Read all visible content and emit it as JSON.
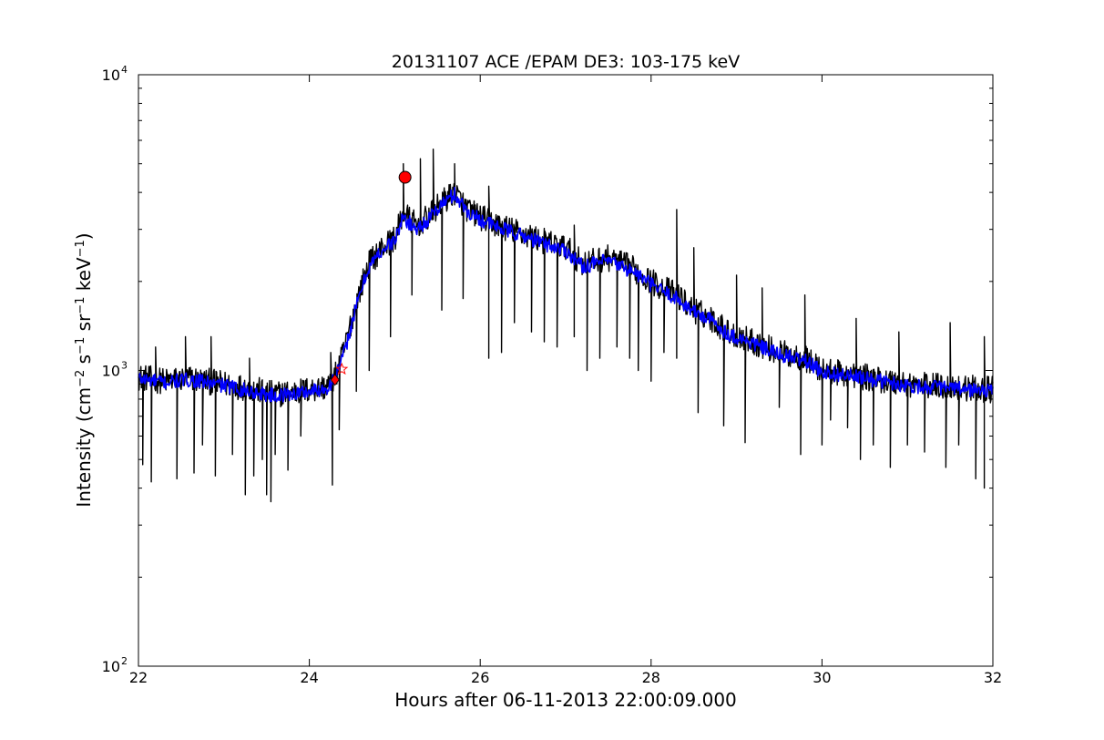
{
  "chart_data": {
    "type": "line",
    "title": "20131107 ACE /EPAM DE3: 103-175 keV",
    "xlabel": "Hours after 06-11-2013 22:00:09.000",
    "ylabel": {
      "text1": "Intensity (cm",
      "sup1": "−2",
      "text2": " s",
      "sup2": "−1",
      "text3": " sr",
      "sup3": "−1",
      "text4": " keV",
      "sup4": "−1",
      "text5": ")"
    },
    "xlim": [
      22,
      32
    ],
    "ylim": [
      100,
      10000
    ],
    "yscale": "log",
    "grid": false,
    "x_ticks": [
      "22",
      "24",
      "26",
      "28",
      "30",
      "32"
    ],
    "y_ticks": [
      {
        "value": 100,
        "base": "10",
        "exp": "2"
      },
      {
        "value": 1000,
        "base": "10",
        "exp": "3"
      },
      {
        "value": 10000,
        "base": "10",
        "exp": "4"
      }
    ],
    "series": [
      {
        "role": "raw",
        "color": "#000000",
        "keypoints": [
          [
            22.0,
            950
          ],
          [
            22.3,
            920
          ],
          [
            22.6,
            940
          ],
          [
            23.0,
            900
          ],
          [
            23.3,
            870
          ],
          [
            23.6,
            830
          ],
          [
            24.0,
            860
          ],
          [
            24.2,
            880
          ],
          [
            24.3,
            950
          ],
          [
            24.4,
            1150
          ],
          [
            24.5,
            1500
          ],
          [
            24.6,
            1900
          ],
          [
            24.7,
            2300
          ],
          [
            24.85,
            2600
          ],
          [
            25.0,
            2800
          ],
          [
            25.1,
            3400
          ],
          [
            25.25,
            3100
          ],
          [
            25.4,
            3300
          ],
          [
            25.55,
            3700
          ],
          [
            25.7,
            4000
          ],
          [
            25.85,
            3500
          ],
          [
            26.0,
            3300
          ],
          [
            26.2,
            3100
          ],
          [
            26.5,
            2900
          ],
          [
            26.8,
            2700
          ],
          [
            27.0,
            2600
          ],
          [
            27.2,
            2300
          ],
          [
            27.5,
            2400
          ],
          [
            27.8,
            2200
          ],
          [
            28.0,
            2000
          ],
          [
            28.3,
            1800
          ],
          [
            28.5,
            1600
          ],
          [
            28.7,
            1500
          ],
          [
            28.9,
            1350
          ],
          [
            29.2,
            1250
          ],
          [
            29.5,
            1150
          ],
          [
            29.8,
            1100
          ],
          [
            30.0,
            1000
          ],
          [
            30.5,
            950
          ],
          [
            31.0,
            900
          ],
          [
            31.5,
            880
          ],
          [
            32.0,
            860
          ]
        ],
        "dips": [
          [
            22.05,
            480
          ],
          [
            22.15,
            420
          ],
          [
            22.45,
            430
          ],
          [
            22.65,
            450
          ],
          [
            22.75,
            560
          ],
          [
            22.9,
            440
          ],
          [
            23.1,
            520
          ],
          [
            23.25,
            380
          ],
          [
            23.35,
            440
          ],
          [
            23.45,
            500
          ],
          [
            23.5,
            380
          ],
          [
            23.55,
            360
          ],
          [
            23.6,
            520
          ],
          [
            23.75,
            460
          ],
          [
            23.9,
            600
          ],
          [
            24.27,
            410
          ],
          [
            24.35,
            630
          ],
          [
            24.55,
            850
          ],
          [
            24.7,
            1000
          ],
          [
            24.95,
            1300
          ],
          [
            25.2,
            1800
          ],
          [
            25.55,
            1600
          ],
          [
            25.8,
            1750
          ],
          [
            26.1,
            1100
          ],
          [
            26.25,
            1150
          ],
          [
            26.4,
            1450
          ],
          [
            26.6,
            1350
          ],
          [
            26.75,
            1250
          ],
          [
            26.9,
            1200
          ],
          [
            27.1,
            1300
          ],
          [
            27.25,
            1000
          ],
          [
            27.4,
            1100
          ],
          [
            27.6,
            1200
          ],
          [
            27.75,
            1100
          ],
          [
            27.85,
            1000
          ],
          [
            28.0,
            920
          ],
          [
            28.15,
            1150
          ],
          [
            28.3,
            1100
          ],
          [
            28.55,
            720
          ],
          [
            28.85,
            650
          ],
          [
            29.1,
            570
          ],
          [
            29.5,
            750
          ],
          [
            29.75,
            520
          ],
          [
            30.0,
            560
          ],
          [
            30.1,
            680
          ],
          [
            30.3,
            640
          ],
          [
            30.45,
            500
          ],
          [
            30.6,
            560
          ],
          [
            30.8,
            470
          ],
          [
            31.0,
            560
          ],
          [
            31.2,
            530
          ],
          [
            31.45,
            470
          ],
          [
            31.6,
            560
          ],
          [
            31.8,
            430
          ],
          [
            31.9,
            400
          ]
        ],
        "spikes": [
          [
            22.2,
            1200
          ],
          [
            22.55,
            1300
          ],
          [
            22.85,
            1300
          ],
          [
            23.3,
            1100
          ],
          [
            24.25,
            1150
          ],
          [
            25.1,
            5000
          ],
          [
            25.3,
            5200
          ],
          [
            25.45,
            5600
          ],
          [
            25.7,
            5000
          ],
          [
            26.1,
            4200
          ],
          [
            27.1,
            3100
          ],
          [
            28.3,
            3500
          ],
          [
            28.5,
            2600
          ],
          [
            29.0,
            2100
          ],
          [
            29.3,
            1900
          ],
          [
            29.8,
            1800
          ],
          [
            30.4,
            1500
          ],
          [
            30.9,
            1350
          ],
          [
            31.5,
            1450
          ],
          [
            31.9,
            1300
          ]
        ]
      },
      {
        "role": "smoothed",
        "color": "#0000ff",
        "keypoints": [
          [
            22.0,
            940
          ],
          [
            22.3,
            910
          ],
          [
            22.6,
            930
          ],
          [
            23.0,
            890
          ],
          [
            23.3,
            850
          ],
          [
            23.6,
            820
          ],
          [
            24.0,
            850
          ],
          [
            24.2,
            870
          ],
          [
            24.3,
            940
          ],
          [
            24.4,
            1120
          ],
          [
            24.5,
            1450
          ],
          [
            24.6,
            1850
          ],
          [
            24.7,
            2250
          ],
          [
            24.85,
            2550
          ],
          [
            25.0,
            2750
          ],
          [
            25.1,
            3300
          ],
          [
            25.25,
            3000
          ],
          [
            25.4,
            3250
          ],
          [
            25.55,
            3650
          ],
          [
            25.7,
            3950
          ],
          [
            25.85,
            3450
          ],
          [
            26.0,
            3250
          ],
          [
            26.2,
            3050
          ],
          [
            26.5,
            2850
          ],
          [
            26.8,
            2650
          ],
          [
            27.0,
            2550
          ],
          [
            27.2,
            2250
          ],
          [
            27.5,
            2350
          ],
          [
            27.8,
            2150
          ],
          [
            28.0,
            1950
          ],
          [
            28.3,
            1750
          ],
          [
            28.5,
            1580
          ],
          [
            28.7,
            1480
          ],
          [
            28.9,
            1330
          ],
          [
            29.2,
            1230
          ],
          [
            29.5,
            1130
          ],
          [
            29.8,
            1080
          ],
          [
            30.0,
            990
          ],
          [
            30.5,
            940
          ],
          [
            31.0,
            890
          ],
          [
            31.5,
            870
          ],
          [
            32.0,
            850
          ]
        ]
      }
    ],
    "markers": [
      {
        "x": 24.3,
        "y": 930,
        "color": "#ff0000",
        "shape": "diamond"
      },
      {
        "x": 24.38,
        "y": 1010,
        "color": "#ff0000",
        "shape": "star"
      },
      {
        "x": 25.12,
        "y": 4500,
        "color": "#ff0000",
        "shape": "circle"
      }
    ]
  }
}
